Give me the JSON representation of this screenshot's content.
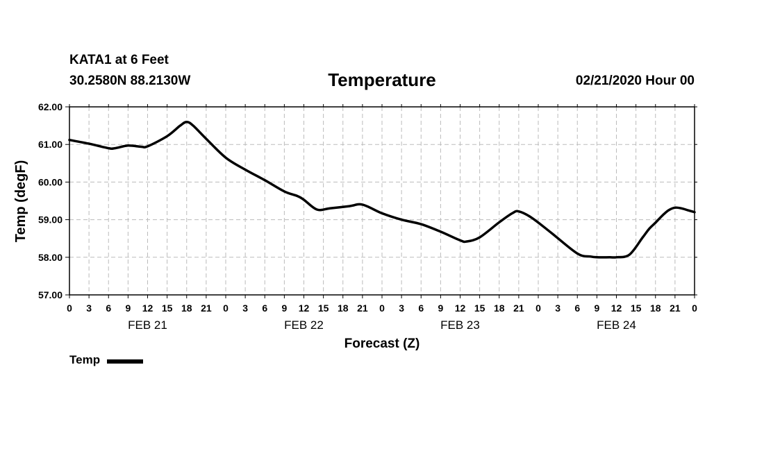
{
  "header": {
    "station": "KATA1 at 6 Feet",
    "coords": "30.2580N 88.2130W",
    "title": "Temperature",
    "run_time": "02/21/2020 Hour 00"
  },
  "chart_data": {
    "type": "line",
    "title": "Temperature",
    "xlabel": "Forecast (Z)",
    "ylabel": "Temp (degF)",
    "ylim": [
      57.0,
      62.0
    ],
    "yticks": [
      "57.00",
      "58.00",
      "59.00",
      "60.00",
      "61.00",
      "62.00"
    ],
    "xlim_hours": [
      0,
      96
    ],
    "xtick_labels": [
      "0",
      "3",
      "6",
      "9",
      "12",
      "15",
      "18",
      "21",
      "0",
      "3",
      "6",
      "9",
      "12",
      "15",
      "18",
      "21",
      "0",
      "3",
      "6",
      "9",
      "12",
      "15",
      "18",
      "21",
      "0",
      "3",
      "6",
      "9",
      "12",
      "15",
      "18",
      "21",
      "0"
    ],
    "day_labels": [
      "FEB 21",
      "FEB 22",
      "FEB 23",
      "FEB 24"
    ],
    "grid": true,
    "legend": {
      "label": "Temp",
      "placement": "bottom-left"
    },
    "series": [
      {
        "name": "Temp",
        "x": [
          0,
          3,
          6,
          7,
          9,
          11,
          12,
          15,
          17,
          18,
          19,
          21,
          24,
          27,
          30,
          33,
          35,
          36,
          38,
          40,
          43,
          45,
          48,
          51,
          54,
          57,
          60,
          61,
          63,
          66,
          68,
          69,
          71,
          74,
          78,
          80,
          81,
          83,
          84,
          86,
          88,
          89,
          90,
          91,
          92,
          93,
          94,
          95,
          96
        ],
        "values": [
          61.12,
          61.02,
          60.9,
          60.9,
          60.97,
          60.94,
          60.95,
          61.22,
          61.5,
          61.6,
          61.5,
          61.15,
          60.65,
          60.33,
          60.05,
          59.75,
          59.63,
          59.53,
          59.27,
          59.3,
          59.36,
          59.4,
          59.17,
          59.0,
          58.88,
          58.68,
          58.45,
          58.42,
          58.53,
          58.93,
          59.17,
          59.22,
          59.05,
          58.65,
          58.1,
          58.02,
          58.0,
          58.0,
          58.0,
          58.07,
          58.52,
          58.75,
          58.92,
          59.1,
          59.25,
          59.32,
          59.3,
          59.25,
          59.2
        ]
      }
    ]
  }
}
